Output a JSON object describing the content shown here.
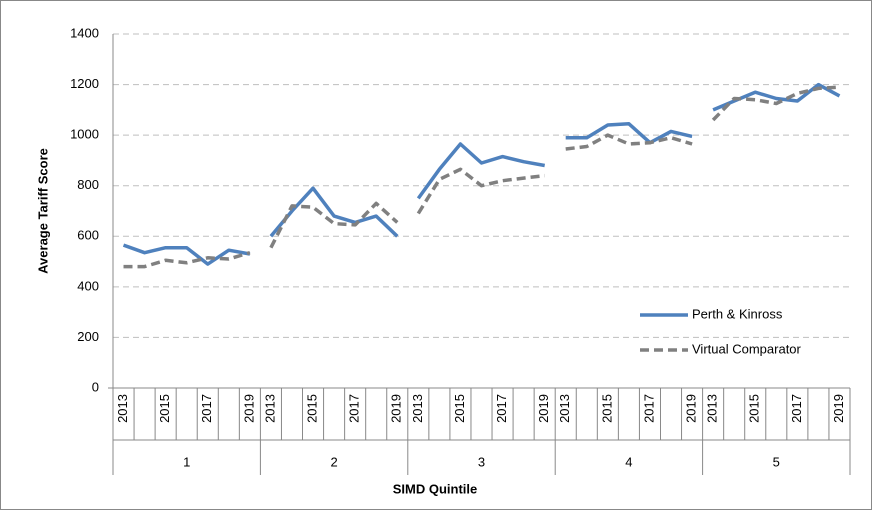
{
  "chart_data": {
    "type": "line",
    "ylabel": "Average Tariff Score",
    "xlabel": "SIMD Quintile",
    "groups": [
      "1",
      "2",
      "3",
      "4",
      "5"
    ],
    "categories": [
      "2013",
      null,
      "2015",
      null,
      "2017",
      null,
      "2019",
      "2013",
      null,
      "2015",
      null,
      "2017",
      null,
      "2019",
      "2013",
      null,
      "2015",
      null,
      "2017",
      null,
      "2019",
      "2013",
      null,
      "2015",
      null,
      "2017",
      null,
      "2019",
      "2013",
      null,
      "2015",
      null,
      "2017",
      null,
      "2019"
    ],
    "series": [
      {
        "name": "Perth & Kinross",
        "color": "#4f81bd",
        "dashed": false,
        "values": [
          565,
          535,
          555,
          555,
          490,
          545,
          530,
          600,
          700,
          790,
          680,
          655,
          680,
          600,
          750,
          865,
          965,
          890,
          915,
          895,
          880,
          990,
          990,
          1040,
          1045,
          970,
          1015,
          995,
          1100,
          1135,
          1170,
          1145,
          1135,
          1200,
          1155
        ]
      },
      {
        "name": "Virtual Comparator",
        "color": "#808080",
        "dashed": true,
        "values": [
          480,
          480,
          505,
          495,
          515,
          510,
          535,
          555,
          720,
          715,
          650,
          645,
          730,
          655,
          690,
          825,
          865,
          800,
          820,
          830,
          840,
          945,
          955,
          1000,
          965,
          970,
          990,
          965,
          1060,
          1145,
          1140,
          1125,
          1165,
          1185,
          1190
        ]
      }
    ],
    "ylim": [
      0,
      1400
    ],
    "yticks": [
      0,
      200,
      400,
      600,
      800,
      1000,
      1200,
      1400
    ],
    "grid": true,
    "legend": "lower right"
  }
}
